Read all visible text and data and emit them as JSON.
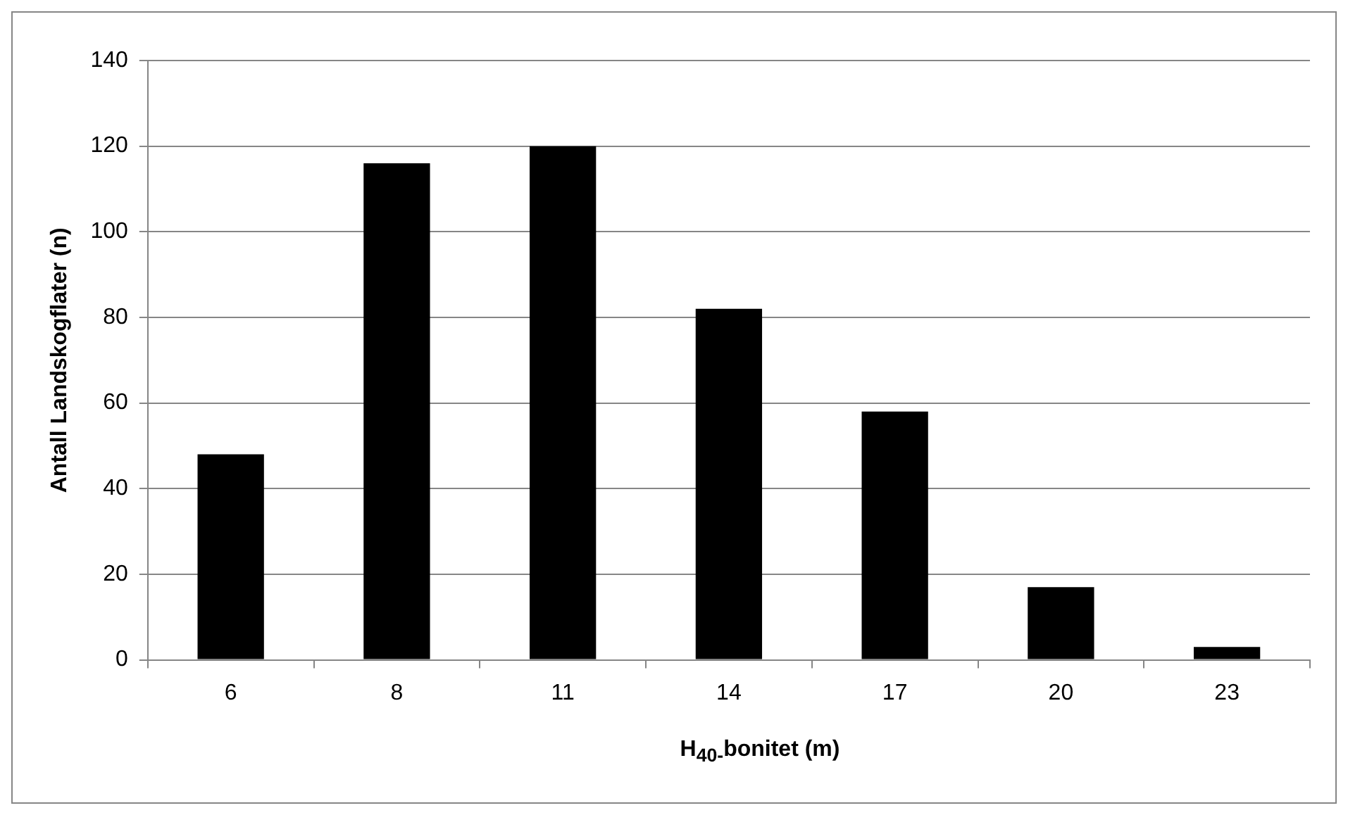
{
  "chart_data": {
    "type": "bar",
    "xlabel": "H$_{40-}$bonitet (m)",
    "ylabel": "Antall Landskogflater (n)",
    "categories": [
      "6",
      "8",
      "11",
      "14",
      "17",
      "20",
      "23"
    ],
    "values": [
      48,
      116,
      120,
      82,
      58,
      17,
      3
    ],
    "color": "#000000",
    "ylim": [
      0,
      140
    ],
    "yticks": [
      0,
      20,
      40,
      60,
      80,
      100,
      120,
      140
    ],
    "grid": "y",
    "legend": false
  }
}
